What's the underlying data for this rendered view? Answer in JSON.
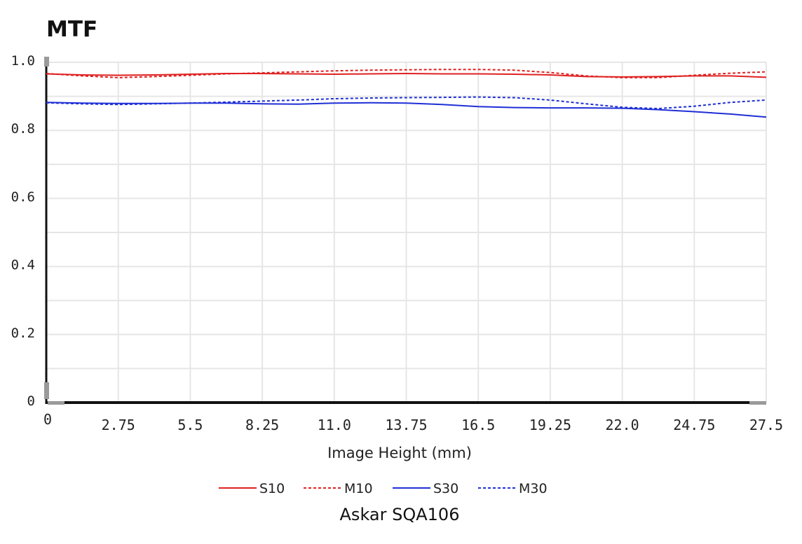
{
  "chart_data": {
    "type": "line",
    "title": "MTF",
    "xlabel": "Image Height (mm)",
    "ylabel": "",
    "caption": "Askar SQA106",
    "xlim": [
      0,
      27.5
    ],
    "ylim": [
      0,
      1.0
    ],
    "grid": true,
    "legend_position": "bottom-center",
    "x_ticks": [
      "0",
      "2.75",
      "5.5",
      "8.25",
      "11.0",
      "13.75",
      "16.5",
      "19.25",
      "22.0",
      "24.75",
      "27.5"
    ],
    "y_ticks": [
      "0",
      "0.2",
      "0.4",
      "0.6",
      "0.8",
      "1.0"
    ],
    "x": [
      0,
      1.375,
      2.75,
      4.125,
      5.5,
      6.875,
      8.25,
      9.625,
      11.0,
      12.375,
      13.75,
      15.125,
      16.5,
      17.875,
      19.25,
      20.625,
      22.0,
      23.375,
      24.75,
      26.125,
      27.5
    ],
    "series": [
      {
        "name": "S10",
        "color": "#e02020",
        "dash": "solid",
        "values": [
          0.966,
          0.963,
          0.962,
          0.963,
          0.965,
          0.967,
          0.967,
          0.966,
          0.965,
          0.966,
          0.967,
          0.966,
          0.966,
          0.965,
          0.963,
          0.958,
          0.957,
          0.958,
          0.96,
          0.96,
          0.956
        ]
      },
      {
        "name": "M10",
        "color": "#e02020",
        "dash": "dotted",
        "values": [
          0.967,
          0.96,
          0.955,
          0.958,
          0.962,
          0.966,
          0.969,
          0.972,
          0.975,
          0.977,
          0.978,
          0.979,
          0.979,
          0.977,
          0.97,
          0.96,
          0.955,
          0.955,
          0.962,
          0.968,
          0.972
        ]
      },
      {
        "name": "S30",
        "color": "#1f2fd6",
        "dash": "solid",
        "values": [
          0.882,
          0.88,
          0.879,
          0.879,
          0.88,
          0.88,
          0.878,
          0.877,
          0.88,
          0.881,
          0.88,
          0.876,
          0.87,
          0.867,
          0.866,
          0.866,
          0.865,
          0.861,
          0.855,
          0.848,
          0.839
        ]
      },
      {
        "name": "M30",
        "color": "#1f2fd6",
        "dash": "dotted",
        "values": [
          0.881,
          0.878,
          0.876,
          0.878,
          0.88,
          0.883,
          0.886,
          0.889,
          0.893,
          0.895,
          0.896,
          0.897,
          0.898,
          0.896,
          0.889,
          0.878,
          0.868,
          0.864,
          0.871,
          0.882,
          0.889
        ]
      }
    ]
  }
}
